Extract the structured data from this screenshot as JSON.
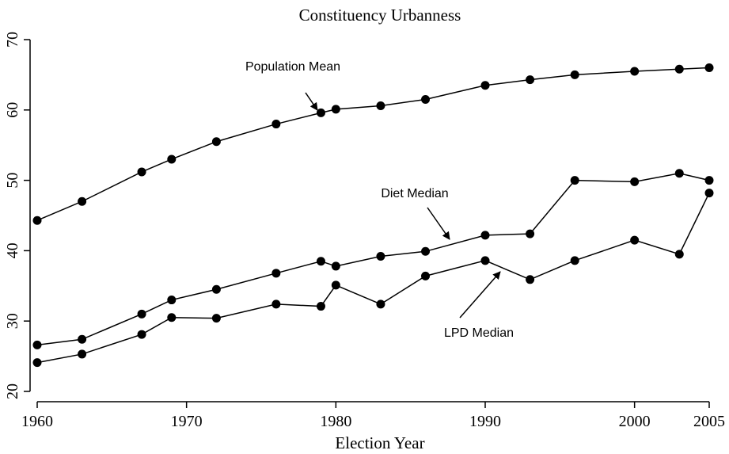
{
  "chart_data": {
    "type": "line",
    "title": "Constituency Urbanness",
    "x_label": "Election Year",
    "x": [
      1960,
      1963,
      1967,
      1969,
      1972,
      1976,
      1979,
      1980,
      1983,
      1986,
      1990,
      1993,
      1996,
      2000,
      2003,
      2005
    ],
    "series": [
      {
        "name": "Population Mean",
        "color": "#000000",
        "values": [
          44.3,
          47.0,
          51.2,
          53.0,
          55.5,
          58.0,
          59.6,
          60.1,
          60.6,
          61.5,
          63.5,
          64.3,
          65.0,
          65.5,
          65.8,
          66.0
        ]
      },
      {
        "name": "Diet Median",
        "color": "#000000",
        "values": [
          26.6,
          27.4,
          31.0,
          33.0,
          34.5,
          36.8,
          38.5,
          37.8,
          39.2,
          39.9,
          42.2,
          42.4,
          50.0,
          49.8,
          51.0,
          50.0
        ]
      },
      {
        "name": "LPD Median",
        "color": "#000000",
        "values": [
          24.1,
          25.3,
          28.1,
          30.5,
          30.4,
          32.4,
          32.1,
          35.1,
          32.4,
          36.4,
          38.6,
          35.9,
          38.6,
          41.5,
          39.5,
          48.2
        ]
      }
    ],
    "xlim": [
      1960,
      2005
    ],
    "xticks": [
      1960,
      1970,
      1980,
      1990,
      2000,
      2005
    ],
    "ylim": [
      20,
      70
    ],
    "yticks": [
      20,
      30,
      40,
      50,
      60,
      70
    ],
    "grid": false
  }
}
